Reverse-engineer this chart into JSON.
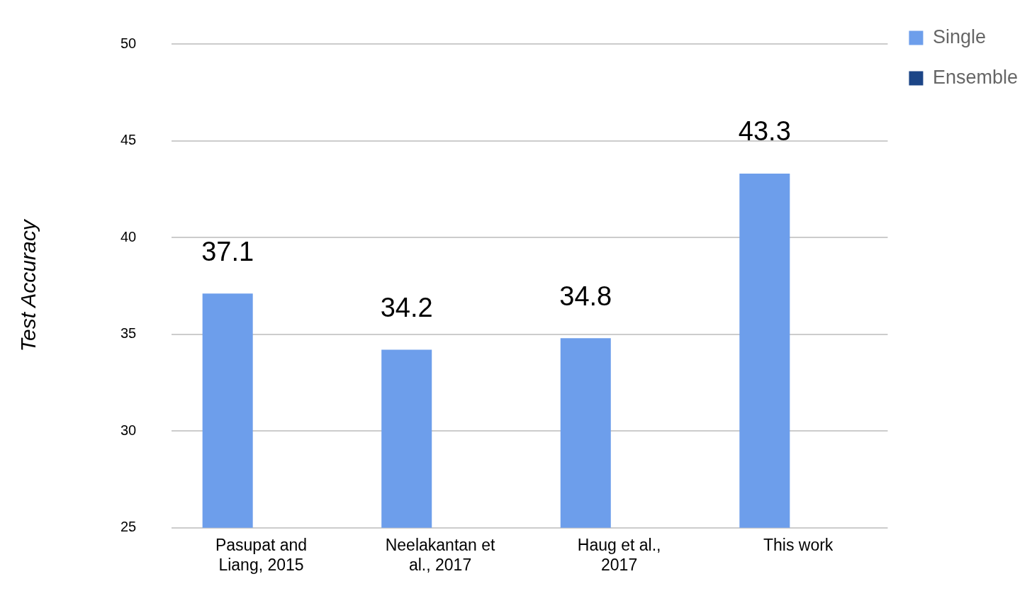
{
  "chart_data": {
    "type": "bar",
    "ylabel": "Test Accuracy",
    "categories": [
      "Pasupat and Liang, 2015",
      "Neelakantan et al., 2017",
      "Haug et al., 2017",
      "This work"
    ],
    "series": [
      {
        "name": "Single",
        "color": "#6d9eeb",
        "values": [
          37.1,
          34.2,
          34.8,
          43.3
        ],
        "value_labels": [
          "37.1",
          "34.2",
          "34.8",
          "43.3"
        ]
      },
      {
        "name": "Ensemble",
        "color": "#1c4587",
        "values": [
          null,
          null,
          null,
          null
        ]
      }
    ],
    "ylim": [
      25,
      50
    ],
    "yticks": [
      25,
      30,
      35,
      40,
      45,
      50
    ],
    "grid": "y",
    "legend": "top right"
  }
}
